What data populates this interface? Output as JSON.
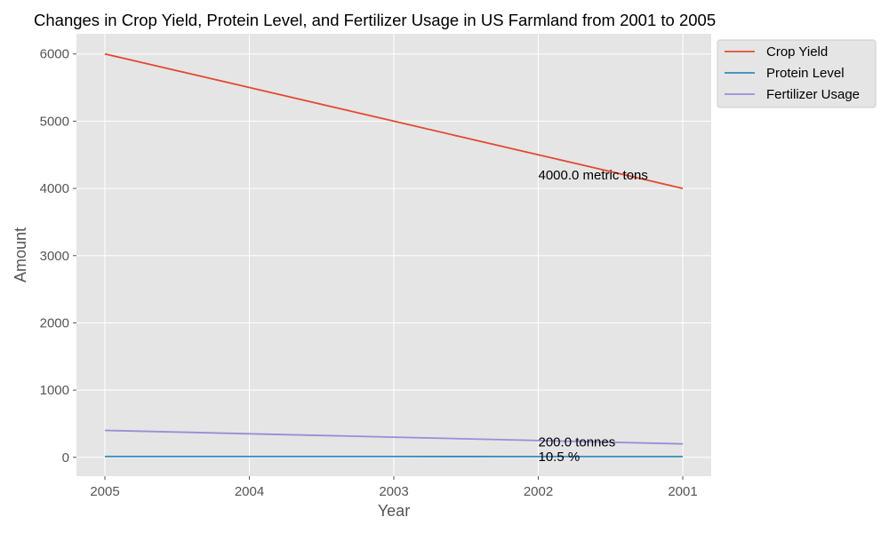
{
  "chart_data": {
    "type": "line",
    "title": "Changes in Crop Yield, Protein Level, and Fertilizer Usage in US Farmland from 2001 to 2005",
    "xlabel": "Year",
    "ylabel": "Amount",
    "categories": [
      "2005",
      "2004",
      "2003",
      "2002",
      "2001"
    ],
    "ylim": [
      -280,
      6300
    ],
    "yticks": [
      0,
      1000,
      2000,
      3000,
      4000,
      5000,
      6000
    ],
    "grid": true,
    "legend": "outside-top-right",
    "series": [
      {
        "name": "Crop Yield",
        "values": [
          6000,
          5500,
          5000,
          4500,
          4000
        ],
        "color": "#E24A33"
      },
      {
        "name": "Protein Level",
        "values": [
          12.5,
          12,
          11.5,
          11,
          10.5
        ],
        "color": "#348ABD"
      },
      {
        "name": "Fertilizer Usage",
        "values": [
          400,
          350,
          300,
          250,
          200
        ],
        "color": "#988ED5"
      }
    ],
    "annotations": [
      {
        "text": "4000.0 metric tons",
        "x": "2002",
        "y": 4200
      },
      {
        "text": "200.0 tonnes",
        "x": "2002",
        "y": 230
      },
      {
        "text": "10.5 %",
        "x": "2002",
        "y": 10.5
      }
    ]
  }
}
